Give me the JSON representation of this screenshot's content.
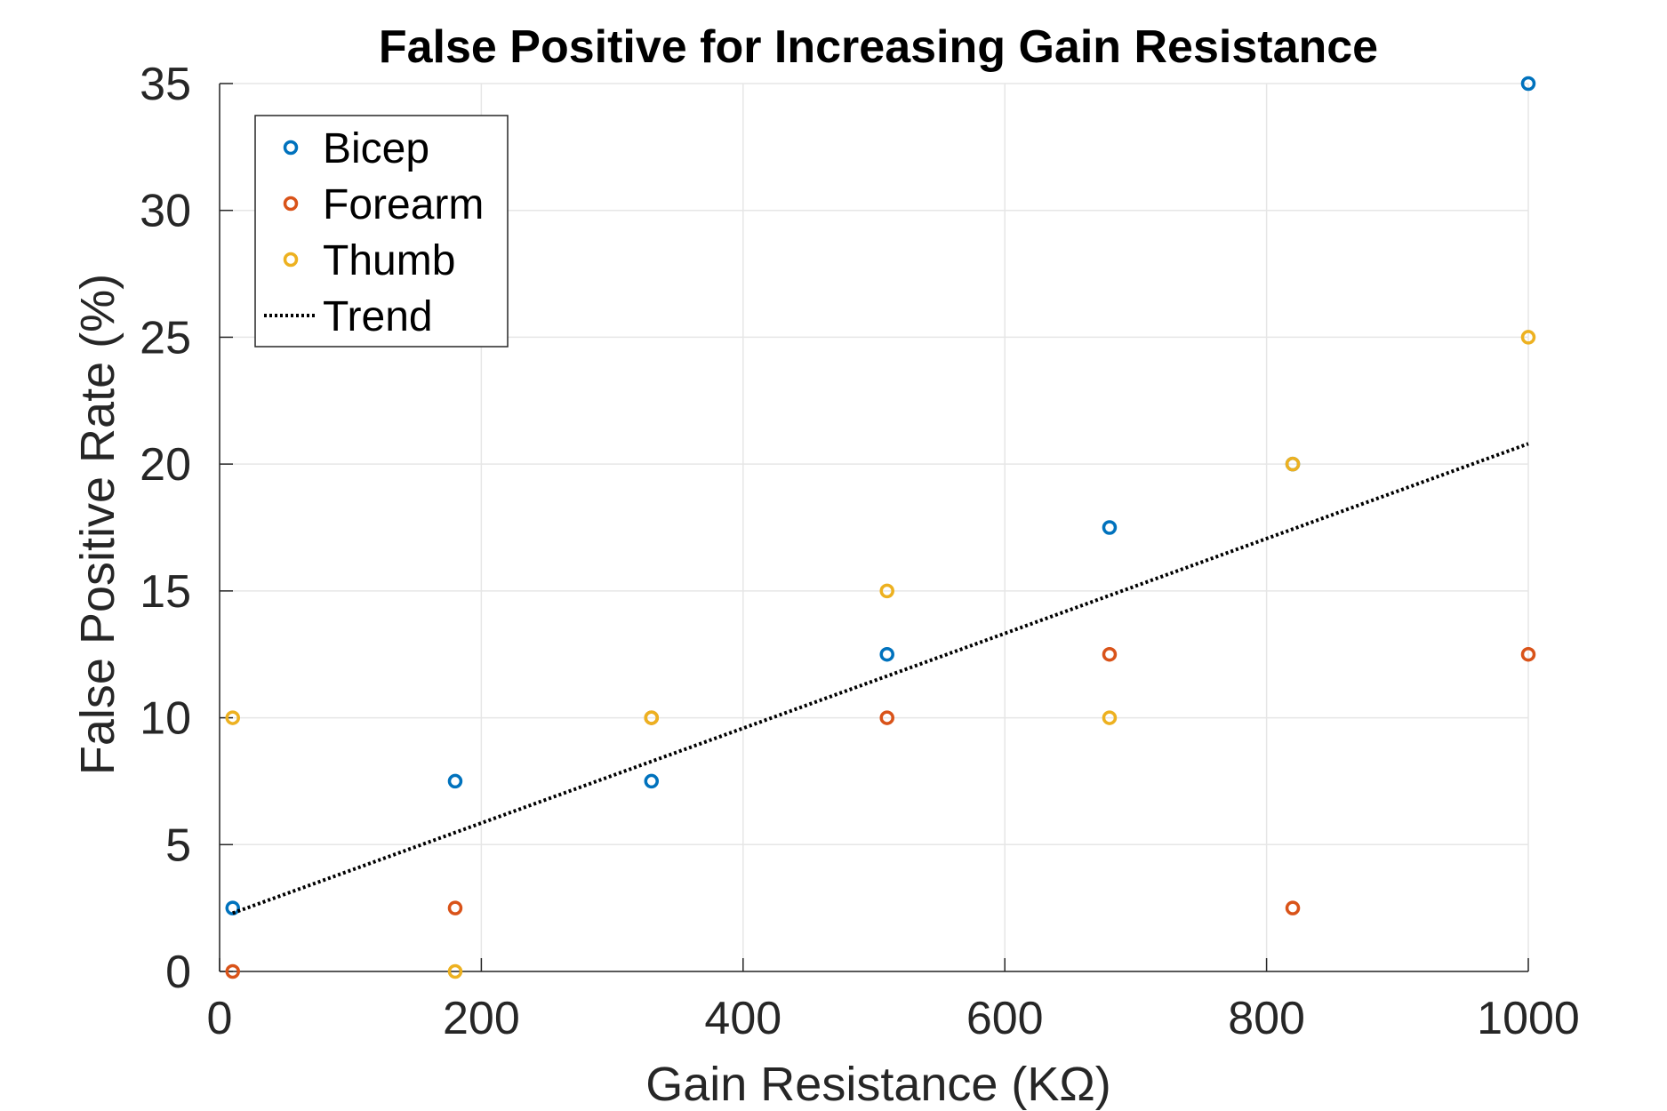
{
  "chart_data": {
    "type": "scatter",
    "title": "False Positive for Increasing Gain Resistance",
    "xlabel": "Gain Resistance (KΩ)",
    "ylabel": "False Positive Rate (%)",
    "xlim": [
      0,
      1000
    ],
    "ylim": [
      0,
      35
    ],
    "xticks": [
      0,
      200,
      400,
      600,
      800,
      1000
    ],
    "yticks": [
      0,
      5,
      10,
      15,
      20,
      25,
      30,
      35
    ],
    "grid": true,
    "legend_position": "top-left",
    "series": [
      {
        "name": "Bicep",
        "color": "#0072BD",
        "marker": "circle",
        "points": [
          [
            10,
            2.5
          ],
          [
            180,
            7.5
          ],
          [
            330,
            7.5
          ],
          [
            510,
            12.5
          ],
          [
            680,
            17.5
          ],
          [
            820,
            20
          ],
          [
            1000,
            35
          ]
        ]
      },
      {
        "name": "Forearm",
        "color": "#D95319",
        "marker": "circle",
        "points": [
          [
            10,
            0
          ],
          [
            180,
            2.5
          ],
          [
            330,
            10
          ],
          [
            510,
            10
          ],
          [
            680,
            12.5
          ],
          [
            820,
            2.5
          ],
          [
            1000,
            12.5
          ]
        ]
      },
      {
        "name": "Thumb",
        "color": "#EDB120",
        "marker": "circle",
        "points": [
          [
            10,
            10
          ],
          [
            180,
            0
          ],
          [
            330,
            10
          ],
          [
            510,
            15
          ],
          [
            680,
            10
          ],
          [
            820,
            20
          ],
          [
            1000,
            25
          ]
        ]
      },
      {
        "name": "Trend",
        "color": "#000000",
        "style": "dotted-line",
        "points": [
          [
            10,
            2.3
          ],
          [
            1000,
            20.8
          ]
        ]
      }
    ]
  }
}
